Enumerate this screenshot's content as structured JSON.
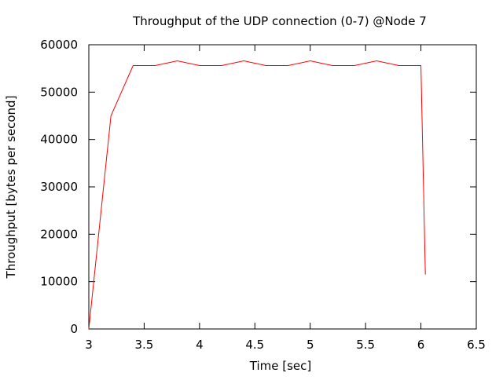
{
  "chart_data": {
    "type": "line",
    "title": "Throughput of the UDP connection (0-7) @Node 7",
    "xlabel": "Time [sec]",
    "ylabel": "Throughput [bytes per second]",
    "xlim": [
      3,
      6.5
    ],
    "ylim": [
      0,
      60000
    ],
    "x_ticks": [
      3,
      3.5,
      4,
      4.5,
      5,
      5.5,
      6,
      6.5
    ],
    "x_tick_labels": [
      "3",
      "3.5",
      "4",
      "4.5",
      "5",
      "5.5",
      "6",
      "6.5"
    ],
    "y_ticks": [
      0,
      10000,
      20000,
      30000,
      40000,
      50000,
      60000
    ],
    "y_tick_labels": [
      "0",
      "10000",
      "20000",
      "30000",
      "40000",
      "50000",
      "60000"
    ],
    "grid": false,
    "legend": "none",
    "series": [
      {
        "color": "#ff0000",
        "x": [
          3.0,
          3.2,
          3.4,
          3.6,
          3.8,
          4.0,
          4.2,
          4.4,
          4.6,
          4.8,
          5.0,
          5.2,
          5.4,
          5.6,
          5.8,
          6.0,
          6.04
        ],
        "y": [
          0,
          45000,
          55600,
          55600,
          56600,
          55600,
          55600,
          56600,
          55600,
          55600,
          56600,
          55600,
          55600,
          56600,
          55600,
          55600,
          11500
        ]
      }
    ]
  }
}
